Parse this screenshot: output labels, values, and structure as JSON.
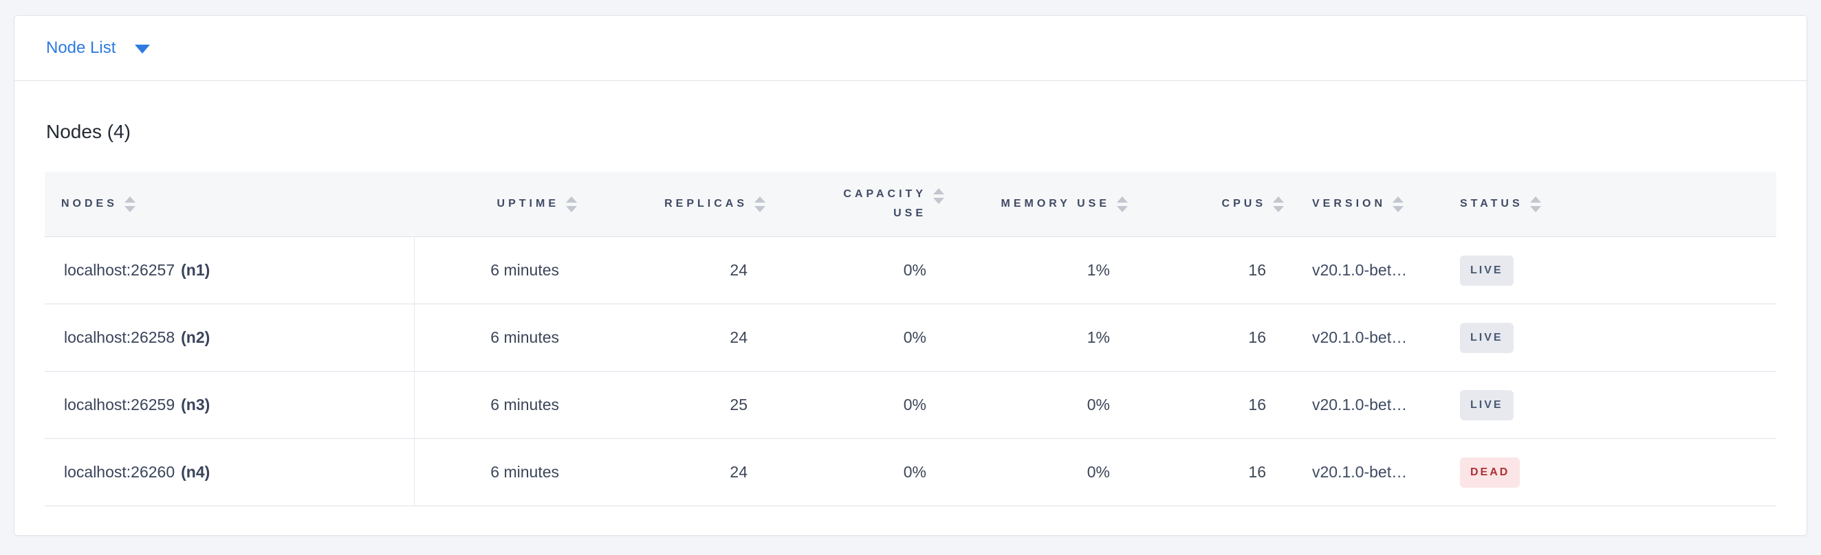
{
  "toolbar": {
    "dropdown_label": "Node List"
  },
  "heading": {
    "title": "Nodes (4)"
  },
  "table": {
    "columns": [
      {
        "label": "NODES",
        "align": "left",
        "sortable": true
      },
      {
        "label": "UPTIME",
        "align": "right",
        "sortable": true
      },
      {
        "label": "REPLICAS",
        "align": "right",
        "sortable": true
      },
      {
        "label": "CAPACITY USE",
        "align": "right",
        "sortable": true
      },
      {
        "label": "MEMORY USE",
        "align": "right",
        "sortable": true
      },
      {
        "label": "CPUS",
        "align": "right",
        "sortable": true
      },
      {
        "label": "VERSION",
        "align": "left",
        "sortable": true
      },
      {
        "label": "STATUS",
        "align": "left",
        "sortable": true
      }
    ],
    "rows": [
      {
        "address": "localhost:26257",
        "id": "(n1)",
        "uptime": "6 minutes",
        "replicas": "24",
        "capacity_use": "0%",
        "memory_use": "1%",
        "cpus": "16",
        "version": "v20.1.0-bet…",
        "status": "LIVE"
      },
      {
        "address": "localhost:26258",
        "id": "(n2)",
        "uptime": "6 minutes",
        "replicas": "24",
        "capacity_use": "0%",
        "memory_use": "1%",
        "cpus": "16",
        "version": "v20.1.0-bet…",
        "status": "LIVE"
      },
      {
        "address": "localhost:26259",
        "id": "(n3)",
        "uptime": "6 minutes",
        "replicas": "25",
        "capacity_use": "0%",
        "memory_use": "0%",
        "cpus": "16",
        "version": "v20.1.0-bet…",
        "status": "LIVE"
      },
      {
        "address": "localhost:26260",
        "id": "(n4)",
        "uptime": "6 minutes",
        "replicas": "24",
        "capacity_use": "0%",
        "memory_use": "0%",
        "cpus": "16",
        "version": "v20.1.0-bet…",
        "status": "DEAD"
      }
    ]
  },
  "theme": {
    "accent_blue": "#2f7ae1",
    "live_badge_bg": "#e7e9ef",
    "live_badge_text": "#475872",
    "dead_badge_bg": "#fbe5e6",
    "dead_badge_text": "#ad2f36",
    "header_bg": "#f6f7f9",
    "page_bg": "#f4f5f9"
  }
}
